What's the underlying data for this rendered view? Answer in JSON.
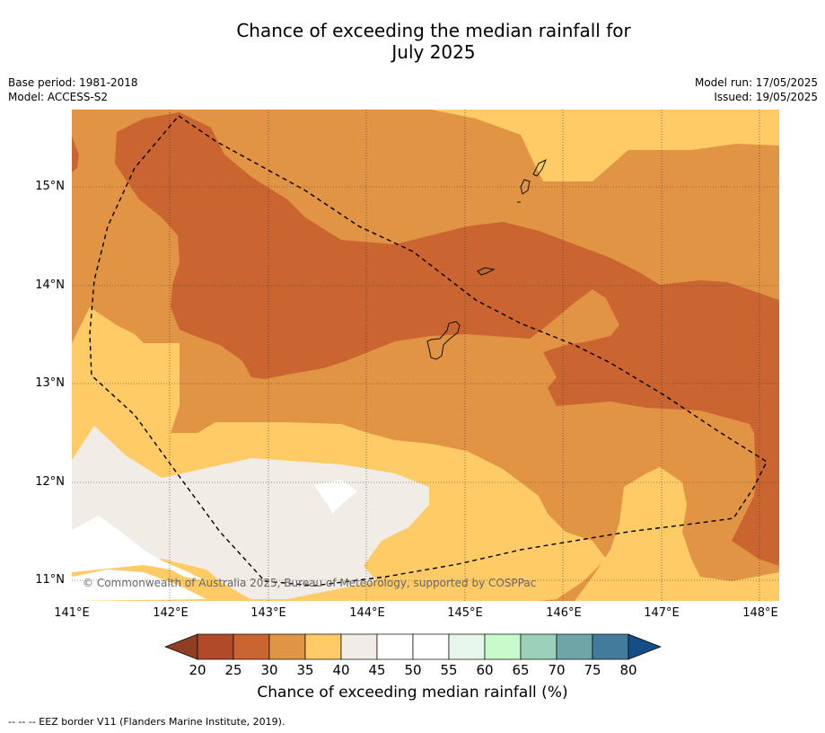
{
  "title_line1": "Chance of exceeding the median rainfall for",
  "title_line2": "July 2025",
  "meta_left": {
    "base_period": "Base period: 1981-2018",
    "model": "Model: ACCESS-S2"
  },
  "meta_right": {
    "model_run": "Model run: 17/05/2025",
    "issued": "Issued: 19/05/2025"
  },
  "lat_labels": [
    "15°N",
    "14°N",
    "13°N",
    "12°N",
    "11°N"
  ],
  "lon_labels": [
    "141°E",
    "142°E",
    "143°E",
    "144°E",
    "145°E",
    "146°E",
    "147°E",
    "148°E"
  ],
  "copyright": "© Commonwealth of Australia 2025, Bureau of Meteorology, supported by COSPPac",
  "colorbar": {
    "labels": [
      "20",
      "25",
      "30",
      "35",
      "40",
      "45",
      "50",
      "55",
      "60",
      "65",
      "70",
      "75",
      "80"
    ],
    "colors": [
      "#8f3e22",
      "#b14a28",
      "#ca6430",
      "#e19443",
      "#fecb66",
      "#f1ece6",
      "#ffffff",
      "#ffffff",
      "#e6f6ea",
      "#c8fbcc",
      "#9bd0b9",
      "#6ea6a8",
      "#427b9b",
      "#154d87"
    ],
    "title": "Chance of exceeding median rainfall (%)"
  },
  "map_colors": {
    "c30_35": "#e19443",
    "c25_30": "#ca6430",
    "c35_40": "#fecb66",
    "c40_45": "#f1ece6",
    "c45_55": "#ffffff"
  },
  "footnote": "--  --  -- EEZ border V11 (Flanders Marine Institute, 2019)."
}
